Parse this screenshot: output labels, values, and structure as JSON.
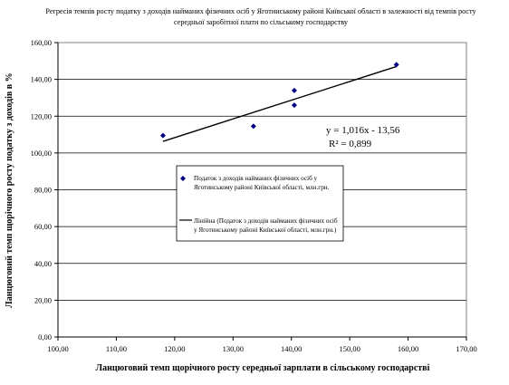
{
  "chart_data": {
    "type": "scatter",
    "title_lines": [
      "Регресія темпів росту податку з доходів найманих фізичних осіб у Яготинському районі Київської області в залежності від темпів росту",
      "середньої заробітної плати по сільському господарству"
    ],
    "xlabel": "Ланцюговий темп щорічного росту середньої зарплати в сільському господарстві",
    "ylabel": "Ланцюговий темп щорічного росту податку з доходів в %",
    "xlim": [
      100,
      170
    ],
    "ylim": [
      0,
      160
    ],
    "x_ticks": [
      100,
      110,
      120,
      130,
      140,
      150,
      160,
      170
    ],
    "y_ticks": [
      0,
      20,
      40,
      60,
      80,
      100,
      120,
      140,
      160
    ],
    "x_tick_labels": [
      "100,00",
      "110,00",
      "120,00",
      "130,00",
      "140,00",
      "150,00",
      "160,00",
      "170,00"
    ],
    "y_tick_labels": [
      "0,00",
      "20,00",
      "40,00",
      "60,00",
      "80,00",
      "100,00",
      "120,00",
      "140,00",
      "160,00"
    ],
    "grid": true,
    "series": [
      {
        "name": "Податок з доходів найманих фізичних осіб у Яготинському районі Київської області, млн.грн.",
        "marker": "diamond",
        "color": "#000080",
        "points": [
          {
            "x": 118.0,
            "y": 109.5
          },
          {
            "x": 133.5,
            "y": 114.5
          },
          {
            "x": 140.5,
            "y": 134.0
          },
          {
            "x": 140.5,
            "y": 126.0
          },
          {
            "x": 158.0,
            "y": 148.0
          }
        ]
      }
    ],
    "trendline": {
      "name": "Лінійна (Податок з доходів найманих фізичних осіб у Яготинському районі Київської області, млн.грн.)",
      "slope": 1.016,
      "intercept": -13.56,
      "x_range": [
        118.0,
        158.0
      ],
      "color": "#000000"
    },
    "annotations": {
      "equation": "y = 1,016x - 13,56",
      "r_squared": "R² = 0,899"
    },
    "legend": {
      "placement": "center-right",
      "items": [
        {
          "type": "marker",
          "lines": [
            "Податок з доходів найманих фізичних осіб у",
            "Яготинському районі Київської області, млн.грн."
          ]
        },
        {
          "type": "line",
          "lines": [
            "Лінійна (Податок з доходів найманих фізичних осіб",
            "у Яготинському районі Київської області, млн.грн.)"
          ]
        }
      ]
    }
  }
}
